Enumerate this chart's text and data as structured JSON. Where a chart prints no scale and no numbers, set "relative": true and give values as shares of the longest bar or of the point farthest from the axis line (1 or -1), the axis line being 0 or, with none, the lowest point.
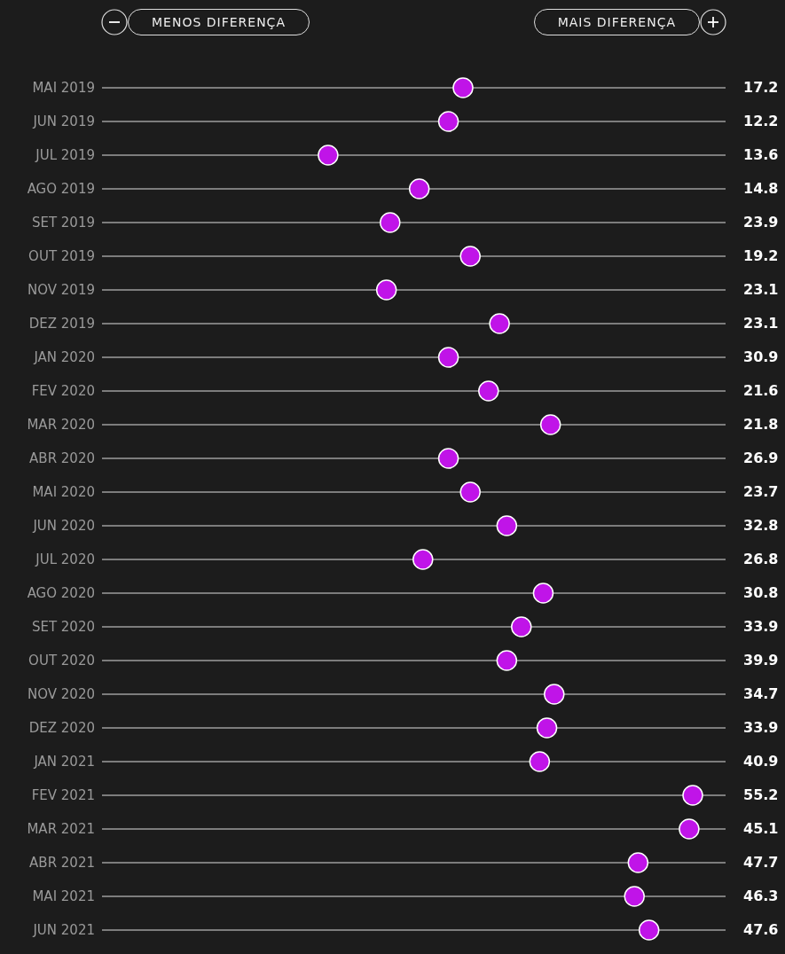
{
  "chart_data": {
    "type": "scatter",
    "orientation": "horizontal",
    "relative": true,
    "grid": "y",
    "marker": "circle",
    "color": "#c014e8",
    "categories": [
      "MAI 2019",
      "JUN 2019",
      "JUL 2019",
      "AGO 2019",
      "SET 2019",
      "OUT 2019",
      "NOV 2019",
      "DEZ 2019",
      "JAN 2020",
      "FEV 2020",
      "MAR 2020",
      "ABR 2020",
      "MAI 2020",
      "JUN 2020",
      "JUL 2020",
      "AGO 2020",
      "SET 2020",
      "OUT 2020",
      "NOV 2020",
      "DEZ 2020",
      "JAN 2021",
      "FEV 2021",
      "MAR 2021",
      "ABR 2021",
      "MAI 2021",
      "JUN 2021"
    ],
    "values": [
      0.37,
      0.33,
      0,
      0.25,
      0.17,
      0.39,
      0.16,
      0.47,
      0.33,
      0.44,
      0.61,
      0.33,
      0.39,
      0.49,
      0.26,
      0.59,
      0.53,
      0.49,
      0.62,
      0.6,
      0.58,
      1,
      0.99,
      0.85,
      0.84,
      0.88
    ],
    "annotations": [
      "MENOS DIFERENÇA",
      "MAIS DIFERENÇA",
      "17.2",
      "12.2",
      "13.6",
      "14.8",
      "23.9",
      "19.2",
      "23.1",
      "23.1",
      "30.9",
      "21.6",
      "21.8",
      "26.9",
      "23.7",
      "32.8",
      "26.8",
      "30.8",
      "33.9",
      "39.9",
      "34.7",
      "33.9",
      "40.9",
      "55.2",
      "45.1",
      "47.7",
      "46.3",
      "47.6"
    ]
  }
}
